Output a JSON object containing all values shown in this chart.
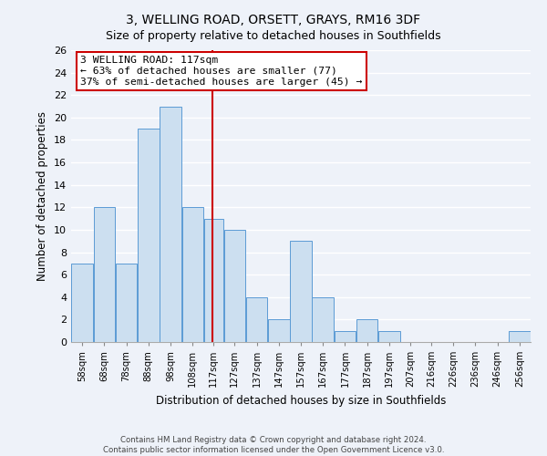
{
  "title_line1": "3, WELLING ROAD, ORSETT, GRAYS, RM16 3DF",
  "title_line2": "Size of property relative to detached houses in Southfields",
  "xlabel": "Distribution of detached houses by size in Southfields",
  "ylabel": "Number of detached properties",
  "bar_labels": [
    "58sqm",
    "68sqm",
    "78sqm",
    "88sqm",
    "98sqm",
    "108sqm",
    "117sqm",
    "127sqm",
    "137sqm",
    "147sqm",
    "157sqm",
    "167sqm",
    "177sqm",
    "187sqm",
    "197sqm",
    "207sqm",
    "216sqm",
    "226sqm",
    "236sqm",
    "246sqm",
    "256sqm"
  ],
  "bar_values": [
    7,
    12,
    7,
    19,
    21,
    12,
    11,
    10,
    4,
    2,
    9,
    4,
    1,
    2,
    1,
    0,
    0,
    0,
    0,
    0,
    1
  ],
  "bar_color": "#ccdff0",
  "bar_edge_color": "#5b9bd5",
  "vline_x": 117,
  "vline_color": "#cc0000",
  "annotation_title": "3 WELLING ROAD: 117sqm",
  "annotation_line2": "← 63% of detached houses are smaller (77)",
  "annotation_line3": "37% of semi-detached houses are larger (45) →",
  "annotation_box_edge": "#cc0000",
  "ylim": [
    0,
    26
  ],
  "yticks": [
    0,
    2,
    4,
    6,
    8,
    10,
    12,
    14,
    16,
    18,
    20,
    22,
    24,
    26
  ],
  "footer_line1": "Contains HM Land Registry data © Crown copyright and database right 2024.",
  "footer_line2": "Contains public sector information licensed under the Open Government Licence v3.0.",
  "bg_color": "#eef2f9",
  "plot_bg_color": "#eef2f9",
  "grid_color": "#ffffff",
  "bin_starts": [
    53,
    63,
    73,
    83,
    93,
    103,
    113,
    122,
    132,
    142,
    152,
    162,
    172,
    182,
    192,
    202,
    211,
    221,
    231,
    241,
    251
  ],
  "bin_ends": [
    63,
    73,
    83,
    93,
    103,
    113,
    122,
    132,
    142,
    152,
    162,
    172,
    182,
    192,
    202,
    211,
    221,
    231,
    241,
    251,
    261
  ]
}
